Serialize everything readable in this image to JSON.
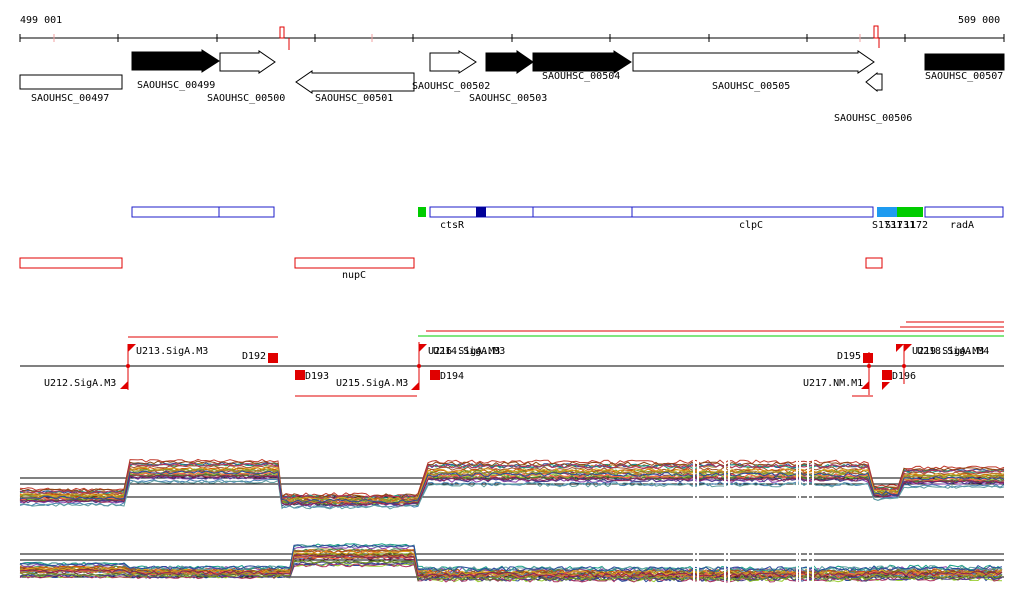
{
  "coords": {
    "start": "499 001",
    "end": "509 000"
  },
  "genes": [
    {
      "label": "SAOUHSC_00497",
      "strand": "none",
      "fill": "white"
    },
    {
      "label": "SAOUHSC_00499",
      "strand": "+",
      "fill": "black"
    },
    {
      "label": "SAOUHSC_00500",
      "strand": "+",
      "fill": "white"
    },
    {
      "label": "SAOUHSC_00501",
      "strand": "-",
      "fill": "white"
    },
    {
      "label": "SAOUHSC_00502",
      "strand": "+",
      "fill": "white"
    },
    {
      "label": "SAOUHSC_00503",
      "strand": "+",
      "fill": "black"
    },
    {
      "label": "SAOUHSC_00504",
      "strand": "+",
      "fill": "black"
    },
    {
      "label": "SAOUHSC_00505",
      "strand": "+",
      "fill": "white"
    },
    {
      "label": "SAOUHSC_00506",
      "strand": "-",
      "fill": "white"
    },
    {
      "label": "SAOUHSC_00507",
      "strand": "none",
      "fill": "black"
    }
  ],
  "annotation_labels": [
    "ctsR",
    "clpC",
    "S1731",
    "S1731",
    "1172",
    "radA"
  ],
  "red_track_labels": [
    "nupC"
  ],
  "tss_labels": [
    "U213.SigA.M3",
    "D192",
    "U212.SigA.M3",
    "D193",
    "U215.SigA.M3",
    "U216.SigA.M3",
    "U214.SigA.M3",
    "D194",
    "D195",
    "U217.NM.M1",
    "D196",
    "U219.SigA.M3",
    "U218.SigA.M4"
  ],
  "colors": {
    "blue_track": "#1e1ec8",
    "red_track": "#e00000",
    "green_mark": "#00cc00",
    "light_blue_mark": "#1e9bf0",
    "dark_blue_mark": "#000099"
  }
}
